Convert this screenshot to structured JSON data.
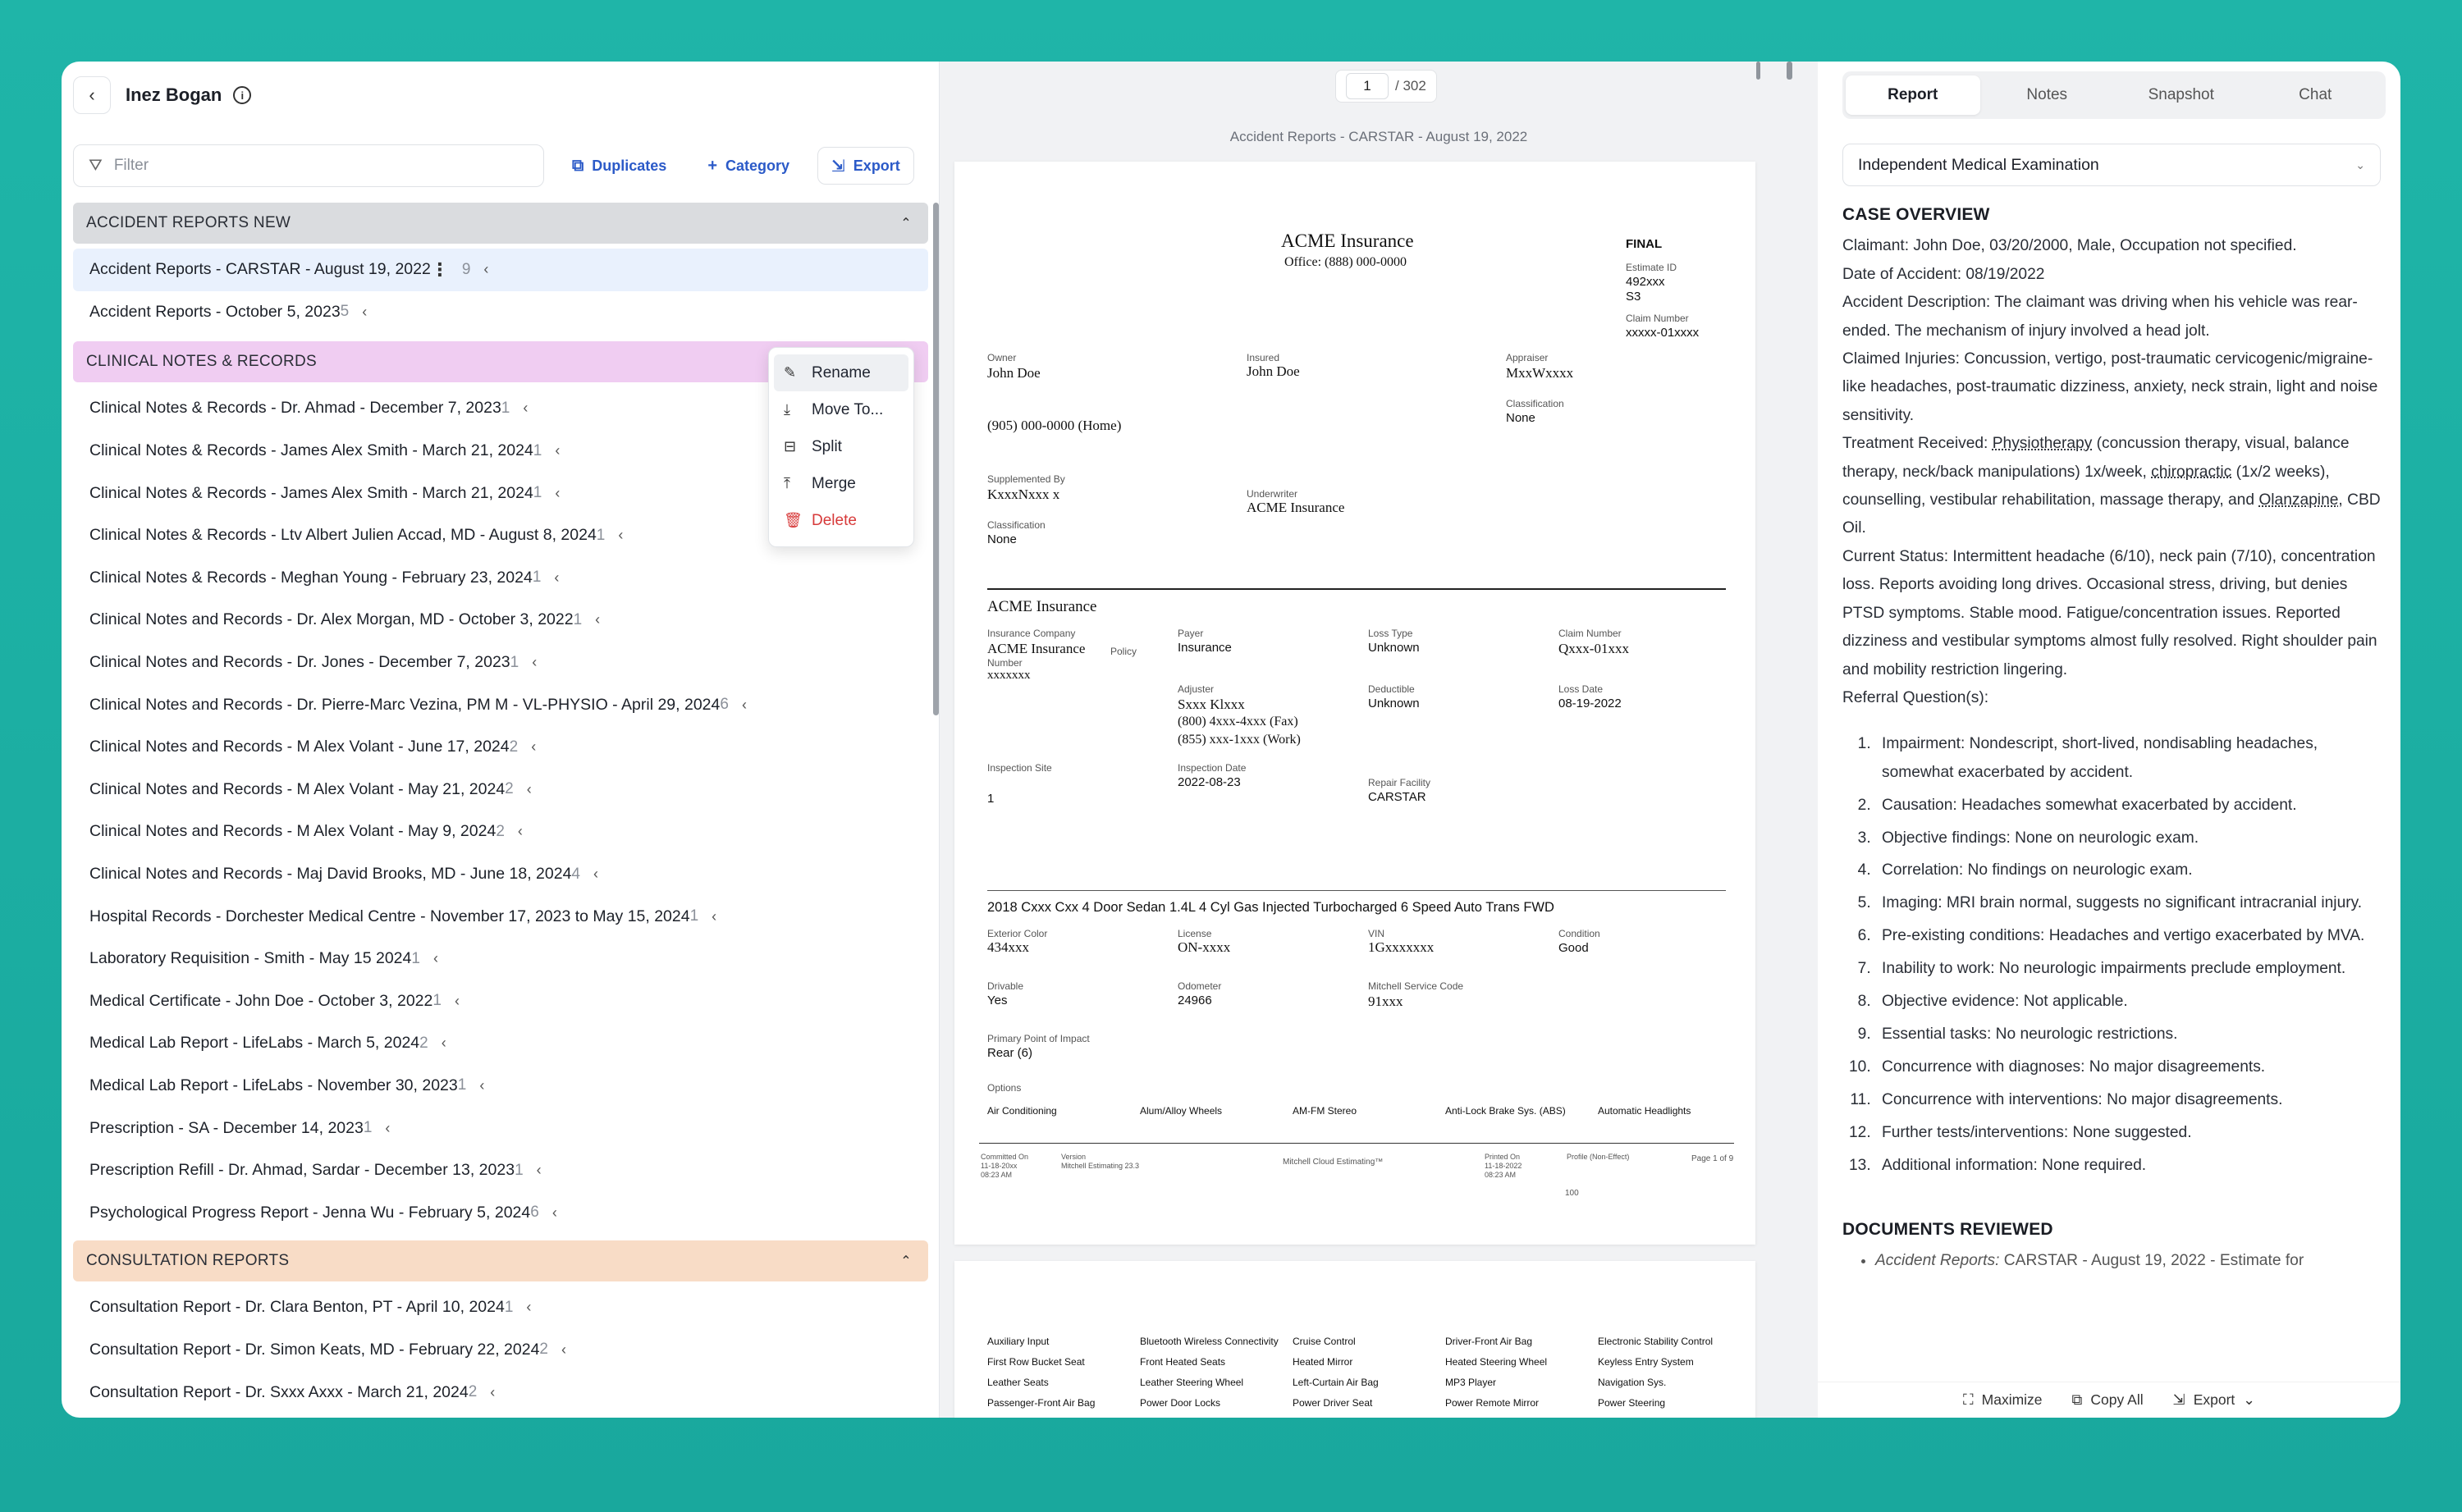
{
  "header": {
    "back_icon": "chevron-left",
    "patient_name": "Inez Bogan",
    "info_icon": "i"
  },
  "toolbar": {
    "filter_placeholder": "Filter",
    "duplicates_label": "Duplicates",
    "category_label": "Category",
    "export_label": "Export"
  },
  "categories": [
    {
      "name": "ACCIDENT REPORTS NEW",
      "color": "#dadcdf",
      "items": [
        {
          "title": "Accident Reports - CARSTAR - August 19, 2022",
          "count": "9",
          "selected": true
        },
        {
          "title": "Accident Reports - October 5, 2023",
          "count": "5",
          "selected": false
        }
      ]
    },
    {
      "name": "CLINICAL NOTES & RECORDS",
      "color": "#f0cdf2",
      "items": [
        {
          "title": "Clinical Notes & Records - Dr. Ahmad - December 7, 2023",
          "count": "1"
        },
        {
          "title": "Clinical Notes & Records - James Alex Smith - March 21, 2024",
          "count": "1"
        },
        {
          "title": "Clinical Notes & Records - James Alex Smith - March 21, 2024",
          "count": "1"
        },
        {
          "title": "Clinical Notes & Records - Ltv Albert Julien Accad, MD - August 8, 2024",
          "count": "1"
        },
        {
          "title": "Clinical Notes & Records - Meghan Young - February 23, 2024",
          "count": "1"
        },
        {
          "title": "Clinical Notes and Records - Dr. Alex Morgan, MD - October 3, 2022",
          "count": "1"
        },
        {
          "title": "Clinical Notes and Records - Dr. Jones - December 7, 2023",
          "count": "1"
        },
        {
          "title": "Clinical Notes and Records - Dr. Pierre-Marc Vezina, PM M - VL-PHYSIO - April 29, 2024",
          "count": "6"
        },
        {
          "title": "Clinical Notes and Records - M Alex Volant - June 17, 2024",
          "count": "2"
        },
        {
          "title": "Clinical Notes and Records - M Alex Volant - May 21, 2024",
          "count": "2"
        },
        {
          "title": "Clinical Notes and Records - M Alex Volant - May 9, 2024",
          "count": "2"
        },
        {
          "title": "Clinical Notes and Records - Maj David Brooks, MD - June 18, 2024",
          "count": "4"
        },
        {
          "title": "Hospital Records - Dorchester Medical Centre - November 17, 2023 to May 15, 2024",
          "count": "1"
        },
        {
          "title": "Laboratory Requisition - Smith - May 15 2024",
          "count": "1"
        },
        {
          "title": "Medical Certificate - John Doe - October 3, 2022",
          "count": "1"
        },
        {
          "title": "Medical Lab Report - LifeLabs - March 5, 2024",
          "count": "2"
        },
        {
          "title": "Medical Lab Report - LifeLabs - November 30, 2023",
          "count": "1"
        },
        {
          "title": "Prescription - SA - December 14, 2023",
          "count": "1"
        },
        {
          "title": "Prescription Refill - Dr. Ahmad, Sardar - December 13, 2023",
          "count": "1"
        },
        {
          "title": "Psychological Progress Report - Jenna Wu - February 5, 2024",
          "count": "6"
        }
      ]
    },
    {
      "name": "CONSULTATION REPORTS",
      "color": "#f8dcc6",
      "items": [
        {
          "title": "Consultation Report - Dr. Clara Benton, PT - April 10, 2024",
          "count": "1"
        },
        {
          "title": "Consultation Report - Dr. Simon Keats, MD - February 22, 2024",
          "count": "2"
        },
        {
          "title": "Consultation Report - Dr. Sxxx Axxx - March 21, 2024",
          "count": "2"
        }
      ]
    }
  ],
  "context_menu": {
    "items": [
      {
        "label": "Rename",
        "icon": "pencil-icon",
        "active": true
      },
      {
        "label": "Move To...",
        "icon": "arrow-down-icon"
      },
      {
        "label": "Split",
        "icon": "split-icon"
      },
      {
        "label": "Merge",
        "icon": "merge-icon"
      },
      {
        "label": "Delete",
        "icon": "trash-icon",
        "danger": true
      }
    ]
  },
  "viewer": {
    "current_page": "1",
    "total_pages": "/ 302",
    "doc_title": "Accident Reports - CARSTAR - August 19, 2022",
    "page1": {
      "company": "ACME Insurance",
      "office": "Office: (888) 000-0000",
      "status": "FINAL",
      "estimate_id_label": "Estimate ID",
      "estimate_id": "492xxx",
      "estimate_id2": "S3",
      "claim_number_label": "Claim Number",
      "claim_number": "xxxxx-01xxxx",
      "owner_label": "Owner",
      "owner": "John Doe",
      "insured_label": "Insured",
      "insured": "John Doe",
      "appraiser_label": "Appraiser",
      "appraiser": "MxxWxxxx",
      "classification_label": "Classification",
      "classification": "None",
      "phone": "(905) 000-0000 (Home)",
      "supplemented_label": "Supplemented By",
      "supplemented": "KxxxNxxx x",
      "underwriter_label": "Underwriter",
      "underwriter": "ACME Insurance",
      "classification2": "None",
      "section_title": "ACME Insurance",
      "ins_company_label": "Insurance Company",
      "ins_company": "ACME Insurance",
      "policy_label": "Policy",
      "number_label": "Number",
      "policy_number": "xxxxxxx",
      "payer_label": "Payer",
      "payer": "Insurance",
      "loss_type_label": "Loss Type",
      "loss_type": "Unknown",
      "claim_number2_label": "Claim Number",
      "claim_number2": "Qxxx-01xxx",
      "adjuster_label": "Adjuster",
      "adjuster": "Sxxx Klxxx",
      "adjuster_fax": "(800) 4xxx-4xxx (Fax)",
      "adjuster_work": "(855) xxx-1xxx (Work)",
      "deductible_label": "Deductible",
      "deductible": "Unknown",
      "loss_date_label": "Loss Date",
      "loss_date": "08-19-2022",
      "inspection_site_label": "Inspection Site",
      "inspection_site": "1",
      "inspection_date_label": "Inspection Date",
      "inspection_date": "2022-08-23",
      "repair_facility_label": "Repair Facility",
      "repair_facility": "CARSTAR",
      "vehicle": "2018 Cxxx Cxx 4 Door Sedan 1.4L 4 Cyl Gas Injected Turbocharged 6 Speed Auto Trans FWD",
      "ext_color_label": "Exterior Color",
      "ext_color": "434xxx",
      "license_label": "License",
      "license": "ON-xxxx",
      "vin_label": "VIN",
      "vin": "1Gxxxxxxx",
      "condition_label": "Condition",
      "condition": "Good",
      "drivable_label": "Drivable",
      "drivable": "Yes",
      "odometer_label": "Odometer",
      "odometer": "24966",
      "mitchell_label": "Mitchell Service Code",
      "mitchell": "91xxx",
      "impact_label": "Primary Point of Impact",
      "impact": "Rear (6)",
      "options_label": "Options",
      "options": [
        "Air Conditioning",
        "Alum/Alloy Wheels",
        "AM-FM Stereo",
        "Anti-Lock Brake Sys. (ABS)",
        "Automatic Headlights"
      ],
      "footer_committed": "Committed On\n11-18-20xx\n08:23 AM",
      "footer_version": "Version\nMitchell Estimating 23.3",
      "footer_mitchell": "Mitchell Cloud Estimating™",
      "footer_printed": "Printed On\n11-18-2022\n08:23 AM",
      "footer_profile": "Profile (Non-Effect)",
      "footer_page": "Page 1 of 9",
      "footer_num": "100"
    },
    "page2_options": [
      [
        "Auxiliary Input",
        "Bluetooth Wireless Connectivity",
        "Cruise Control",
        "Driver-Front Air Bag",
        "Electronic Stability Control"
      ],
      [
        "First Row Bucket Seat",
        "Front Heated Seats",
        "Heated Mirror",
        "Heated Steering Wheel",
        "Keyless Entry System"
      ],
      [
        "Leather Seats",
        "Leather Steering Wheel",
        "Left-Curtain Air Bag",
        "MP3 Player",
        "Navigation Sys."
      ],
      [
        "Passenger-Front Air Bag",
        "Power Door Locks",
        "Power Driver Seat",
        "Power Remote Mirror",
        "Power Steering"
      ]
    ]
  },
  "right_panel": {
    "tabs": [
      "Report",
      "Notes",
      "Snapshot",
      "Chat"
    ],
    "active_tab": "Report",
    "template": "Independent Medical Examination",
    "case_overview_title": "CASE OVERVIEW",
    "claimant": "Claimant: John Doe, 03/20/2000, Male, Occupation not specified.",
    "date_of_accident": "Date of Accident: 08/19/2022",
    "accident_description": "Accident Description: The claimant was driving when his vehicle was rear-ended. The mechanism of injury involved a head jolt.",
    "claimed_injuries": "Claimed Injuries: Concussion, vertigo, post-traumatic cervicogenic/migraine-like headaches, post-traumatic dizziness, anxiety, neck strain, light and noise sensitivity.",
    "treatment_prefix": "Treatment Received: ",
    "treatment_physio": "Physiotherapy",
    "treatment_mid": " (concussion therapy, visual, balance therapy, neck/back manipulations) 1x/week, ",
    "treatment_chiro": "chiropractic",
    "treatment_mid2": " (1x/2 weeks), counselling, vestibular rehabilitation, massage therapy, and ",
    "treatment_olanz": "Olanzapine",
    "treatment_end": ", CBD Oil.",
    "current_status": "Current Status: Intermittent headache (6/10), neck pain (7/10), concentration loss. Reports avoiding long drives. Occasional stress, driving, but denies PTSD symptoms. Stable mood. Fatigue/concentration issues. Reported dizziness and vestibular symptoms almost fully resolved. Right shoulder pain and mobility restriction lingering.",
    "referral_label": "Referral Question(s):",
    "referral_questions": [
      "Impairment: Nondescript, short-lived, nondisabling headaches, somewhat exacerbated by accident.",
      "Causation: Headaches somewhat exacerbated by accident.",
      "Objective findings: None on neurologic exam.",
      "Correlation: No findings on neurologic exam.",
      "Imaging: MRI brain normal, suggests no significant intracranial injury.",
      "Pre-existing conditions: Headaches and vertigo exacerbated by MVA.",
      "Inability to work: No neurologic impairments preclude employment.",
      "Objective evidence: Not applicable.",
      "Essential tasks: No neurologic restrictions.",
      "Concurrence with diagnoses: No major disagreements.",
      "Concurrence with interventions: No major disagreements.",
      "Further tests/interventions: None suggested.",
      "Additional information: None required."
    ],
    "documents_reviewed_title": "DOCUMENTS REVIEWED",
    "documents_reviewed_first_em": "Accident Reports:",
    "documents_reviewed_first_rest": " CARSTAR - August 19, 2022 - Estimate for",
    "footer": {
      "maximize": "Maximize",
      "copy_all": "Copy All",
      "export": "Export"
    }
  },
  "colors": {
    "background": "#1fb5a8",
    "accent": "#2b5ac8",
    "selected_row": "#e9f1fd",
    "danger": "#d73a3a"
  }
}
